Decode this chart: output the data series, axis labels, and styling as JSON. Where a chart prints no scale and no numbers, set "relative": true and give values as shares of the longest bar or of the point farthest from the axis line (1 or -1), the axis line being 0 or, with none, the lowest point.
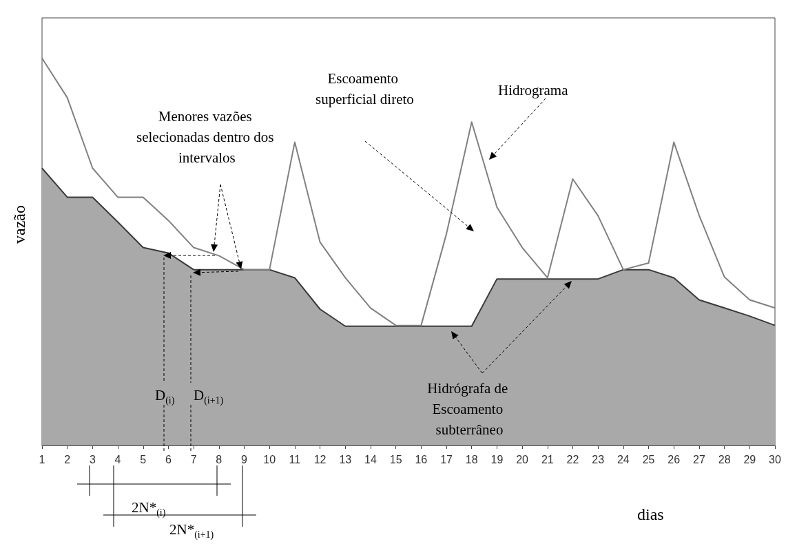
{
  "chart_data": {
    "type": "line",
    "relative": true,
    "xlabel": "dias",
    "ylabel": "vazão",
    "x": [
      1,
      2,
      3,
      4,
      5,
      6,
      7,
      8,
      9,
      10,
      11,
      12,
      13,
      14,
      15,
      16,
      17,
      18,
      19,
      20,
      21,
      22,
      23,
      24,
      25,
      26,
      27,
      28,
      29,
      30
    ],
    "xlim": [
      1,
      30
    ],
    "xticks": [
      1,
      2,
      3,
      4,
      5,
      6,
      7,
      8,
      9,
      10,
      11,
      12,
      13,
      14,
      15,
      16,
      17,
      18,
      19,
      20,
      21,
      22,
      23,
      24,
      25,
      26,
      27,
      28,
      29,
      30
    ],
    "grid": false,
    "marker": "none",
    "line_style": "solid",
    "series": [
      {
        "type": "area",
        "color": "#a9a9a9",
        "values": [
          0.716,
          0.641,
          0.641,
          0.577,
          0.511,
          0.497,
          0.454,
          0.454,
          0.454,
          0.454,
          0.433,
          0.352,
          0.308,
          0.308,
          0.308,
          0.308,
          0.308,
          0.308,
          0.43,
          0.43,
          0.43,
          0.43,
          0.43,
          0.454,
          0.454,
          0.433,
          0.376,
          0.355,
          0.334,
          0.31
        ]
      },
      {
        "color": "#808080",
        "values": [
          1,
          0.898,
          0.716,
          0.641,
          0.641,
          0.581,
          0.511,
          0.49,
          0.454,
          0.454,
          0.783,
          0.525,
          0.433,
          0.355,
          0.31,
          0.31,
          0.546,
          0.835,
          0.615,
          0.511,
          0.433,
          0.688,
          0.593,
          0.454,
          0.471,
          0.783,
          0.594,
          0.435,
          0.376,
          0.355
        ]
      }
    ],
    "annotations": [
      "Menores vazões selecionadas dentro dos intervalos",
      "Escoamento superficial direto",
      "Hidrograma",
      "Hidrógrafa de Escoamento subterrâneo",
      "D$_{(i)}$",
      "D$_{(i+1)}$",
      "2N*$_{(i)}$",
      "2N*$_{(i+1)}$"
    ]
  }
}
